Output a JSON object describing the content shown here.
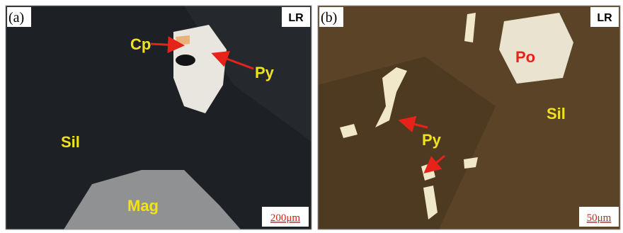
{
  "panels": [
    {
      "label": "(a)",
      "tag": "LR",
      "annotations": [
        "Cp",
        "Py",
        "Sil",
        "Mag"
      ],
      "scale": "200μm"
    },
    {
      "label": "(b)",
      "tag": "LR",
      "annotations": [
        "Po",
        "Sil",
        "Py"
      ],
      "scale": "50μm"
    }
  ]
}
